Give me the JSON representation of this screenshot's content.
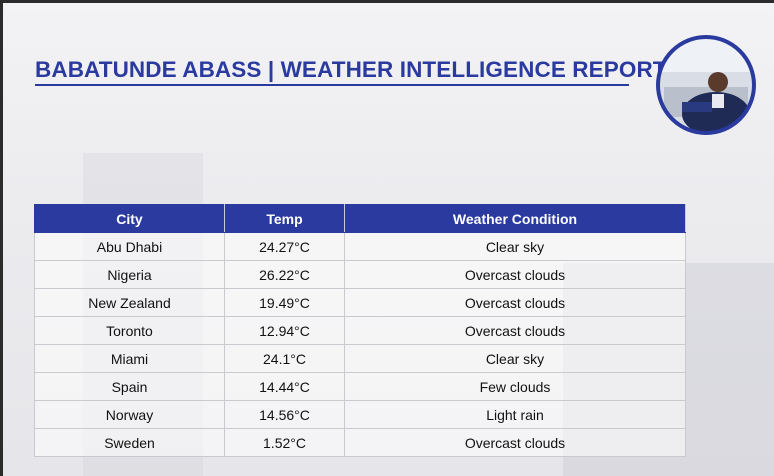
{
  "header": {
    "title": "BABATUNDE ABASS | WEATHER INTELLIGENCE REPORT"
  },
  "table": {
    "columns": [
      "City",
      "Temp",
      "Weather Condition"
    ],
    "rows": [
      [
        "Abu Dhabi",
        "24.27°C",
        "Clear sky"
      ],
      [
        "Nigeria",
        "26.22°C",
        "Overcast clouds"
      ],
      [
        "New Zealand",
        "19.49°C",
        "Overcast clouds"
      ],
      [
        "Toronto",
        "12.94°C",
        "Overcast clouds"
      ],
      [
        "Miami",
        "24.1°C",
        "Clear sky"
      ],
      [
        "Spain",
        "14.44°C",
        "Few clouds"
      ],
      [
        "Norway",
        "14.56°C",
        "Light rain"
      ],
      [
        "Sweden",
        "1.52°C",
        "Overcast clouds"
      ]
    ]
  }
}
